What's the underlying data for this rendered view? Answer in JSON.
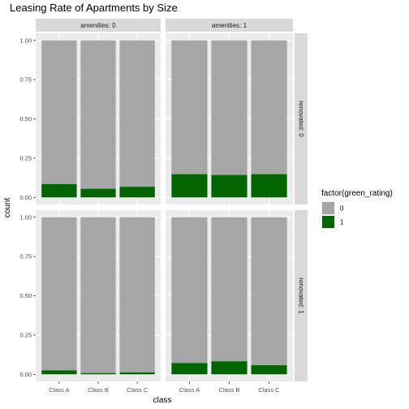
{
  "chart_data": {
    "type": "bar",
    "stacked": true,
    "title": "Leasing Rate of Apartments by Size",
    "xlabel": "class",
    "ylabel": "count",
    "categories": [
      "Class A",
      "Class B",
      "Class C"
    ],
    "ylim": [
      0,
      1
    ],
    "yticks": [
      "0.00",
      "0.25",
      "0.50",
      "0.75",
      "1.00"
    ],
    "facet_cols": [
      "amenities: 0",
      "amenities: 1"
    ],
    "facet_rows": [
      "renovated: 0",
      "renovated: 1"
    ],
    "legend": {
      "title": "factor(green_rating)",
      "entries": [
        {
          "label": "0",
          "color": "#a6a6a6"
        },
        {
          "label": "1",
          "color": "#006400"
        }
      ],
      "position": "right"
    },
    "panels": [
      {
        "row": 0,
        "col": 0,
        "green_values": [
          0.085,
          0.055,
          0.068
        ]
      },
      {
        "row": 0,
        "col": 1,
        "green_values": [
          0.148,
          0.143,
          0.148
        ]
      },
      {
        "row": 1,
        "col": 0,
        "green_values": [
          0.025,
          0.008,
          0.012
        ]
      },
      {
        "row": 1,
        "col": 1,
        "green_values": [
          0.072,
          0.083,
          0.058
        ]
      }
    ],
    "grid": true,
    "panel_background": "#ebebeb"
  }
}
